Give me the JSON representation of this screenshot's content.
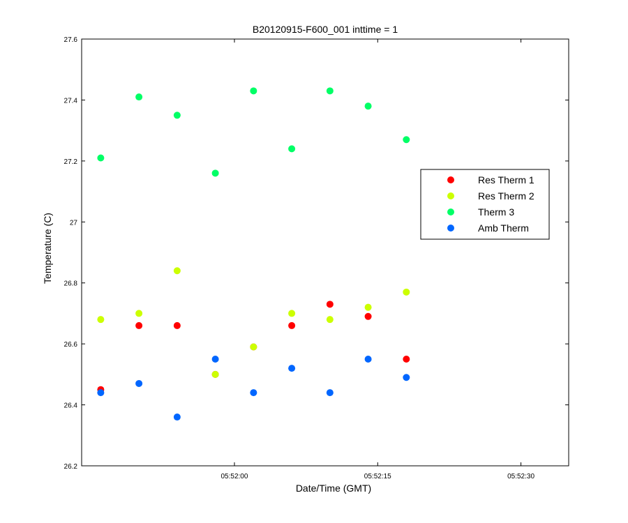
{
  "chart_data": {
    "type": "scatter",
    "title": "B20120915-F600_001 inttime = 1",
    "xlabel": "Date/Time (GMT)",
    "ylabel": "Temperature (C)",
    "ylim": [
      26.2,
      27.6
    ],
    "xlim": [
      "05:51:44",
      "05:52:35"
    ],
    "x_ticks": [
      "05:52:00",
      "05:52:15",
      "05:52:30"
    ],
    "y_ticks": [
      "26.2",
      "26.4",
      "26.6",
      "26.8",
      "27",
      "27.2",
      "27.4",
      "27.6"
    ],
    "x": [
      "05:51:46",
      "05:51:50",
      "05:51:54",
      "05:51:58",
      "05:52:02",
      "05:52:06",
      "05:52:10",
      "05:52:14",
      "05:52:18"
    ],
    "grid": false,
    "legend_position": "right",
    "series": [
      {
        "name": "Res Therm 1",
        "color": "#ff0000",
        "values": [
          26.45,
          26.66,
          26.66,
          26.5,
          26.59,
          26.66,
          26.73,
          26.69,
          26.55
        ]
      },
      {
        "name": "Res Therm 2",
        "color": "#ccff00",
        "values": [
          26.68,
          26.7,
          26.84,
          26.5,
          26.59,
          26.7,
          26.68,
          26.72,
          26.77
        ]
      },
      {
        "name": "Therm 3",
        "color": "#00ff66",
        "values": [
          27.21,
          27.41,
          27.35,
          27.16,
          27.43,
          27.24,
          27.43,
          27.38,
          27.27
        ]
      },
      {
        "name": "Amb Therm",
        "color": "#0066ff",
        "values": [
          26.44,
          26.47,
          26.36,
          26.55,
          26.44,
          26.52,
          26.44,
          26.55,
          26.49
        ]
      }
    ]
  }
}
